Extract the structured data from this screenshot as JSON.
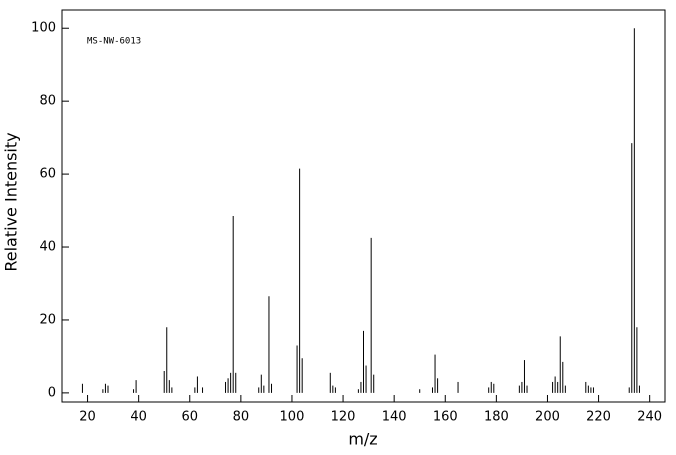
{
  "chart_data": {
    "type": "bar",
    "annotation": "MS-NW-6013",
    "x_label": "m/z",
    "y_label": "Relative Intensity",
    "color": "#000000",
    "x": [
      18,
      26,
      27,
      28,
      38,
      39,
      50,
      51,
      52,
      53,
      62,
      63,
      65,
      74,
      75,
      76,
      77,
      78,
      87,
      88,
      89,
      91,
      92,
      102,
      103,
      104,
      115,
      116,
      117,
      126,
      127,
      128,
      129,
      131,
      132,
      150,
      155,
      156,
      157,
      165,
      177,
      178,
      179,
      189,
      190,
      191,
      192,
      202,
      203,
      204,
      205,
      206,
      207,
      215,
      216,
      217,
      218,
      232,
      233,
      234,
      235,
      236
    ],
    "values": [
      2.5,
      1,
      2.5,
      2,
      1,
      3.5,
      6,
      18,
      3.5,
      1.5,
      1.5,
      4.5,
      1.5,
      3,
      4,
      5.5,
      48.5,
      5.5,
      1.5,
      5,
      2,
      26.5,
      2.5,
      13,
      61.5,
      9.5,
      5.5,
      2,
      1.5,
      1,
      3,
      17,
      7.5,
      42.5,
      5,
      1,
      1.5,
      10.5,
      4,
      3,
      1.5,
      3,
      2.5,
      2,
      3,
      9,
      2,
      3,
      4.5,
      3,
      15.5,
      8.5,
      2,
      3,
      2,
      1.5,
      1.5,
      1.5,
      68.5,
      100,
      18,
      2
    ],
    "xlim": [
      10,
      246
    ],
    "ylim": [
      -2.5,
      105
    ],
    "xticks": [
      20,
      40,
      60,
      80,
      100,
      120,
      140,
      160,
      180,
      200,
      220,
      240
    ],
    "yticks": [
      0,
      20,
      40,
      60,
      80,
      100
    ]
  }
}
